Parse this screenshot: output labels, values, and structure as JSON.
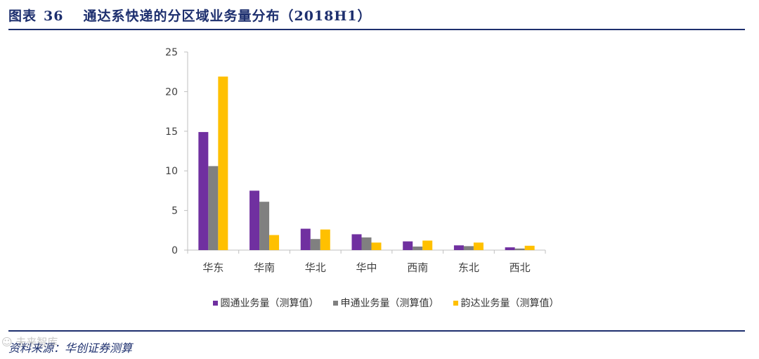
{
  "figure": {
    "label": "图表",
    "number": "36",
    "title": "通达系快递的分区域业务量分布（2018H1）",
    "source": "资料来源：华创证券测算",
    "watermark": "☺ 未来智库"
  },
  "chart_data": {
    "type": "bar",
    "title": "",
    "xlabel": "",
    "ylabel": "",
    "ylim": [
      0,
      25
    ],
    "yticks": [
      "0",
      "5",
      "10",
      "15",
      "20",
      "25"
    ],
    "categories": [
      "华东",
      "华南",
      "华北",
      "华中",
      "西南",
      "东北",
      "西北"
    ],
    "series": [
      {
        "name": "圆通业务量（测算值）",
        "color": "#7030a0",
        "values": [
          14.9,
          7.5,
          2.7,
          2.0,
          1.1,
          0.6,
          0.35
        ]
      },
      {
        "name": "申通业务量（测算值）",
        "color": "#808080",
        "values": [
          10.6,
          6.1,
          1.4,
          1.6,
          0.45,
          0.5,
          0.2
        ]
      },
      {
        "name": "韵达业务量（测算值）",
        "color": "#ffc000",
        "values": [
          21.9,
          1.9,
          2.6,
          0.95,
          1.2,
          0.95,
          0.55
        ]
      }
    ],
    "legend_position": "bottom",
    "grid": false
  }
}
